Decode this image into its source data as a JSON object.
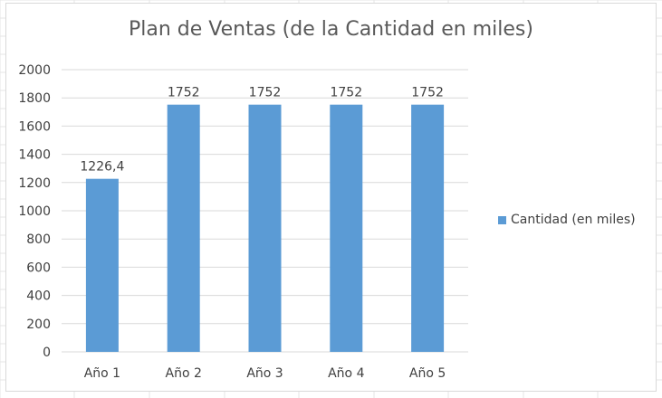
{
  "colors": {
    "bar": "#5b9bd5",
    "gridline": "#d9d9d9",
    "axis_text": "#404040",
    "title_text": "#595959",
    "sheet_gridline": "#e6e6e6"
  },
  "chart_data": {
    "type": "bar",
    "title": "Plan de Ventas (de la Cantidad en miles)",
    "categories": [
      "Año 1",
      "Año 2",
      "Año 3",
      "Año 4",
      "Año 5"
    ],
    "series": [
      {
        "name": "Cantidad (en miles)",
        "values": [
          1226.4,
          1752,
          1752,
          1752,
          1752
        ],
        "labels": [
          "1226,4",
          "1752",
          "1752",
          "1752",
          "1752"
        ]
      }
    ],
    "ylim": [
      0,
      2000
    ],
    "yticks": [
      0,
      200,
      400,
      600,
      800,
      1000,
      1200,
      1400,
      1600,
      1800,
      2000
    ],
    "grid": true,
    "legend_position": "right"
  }
}
